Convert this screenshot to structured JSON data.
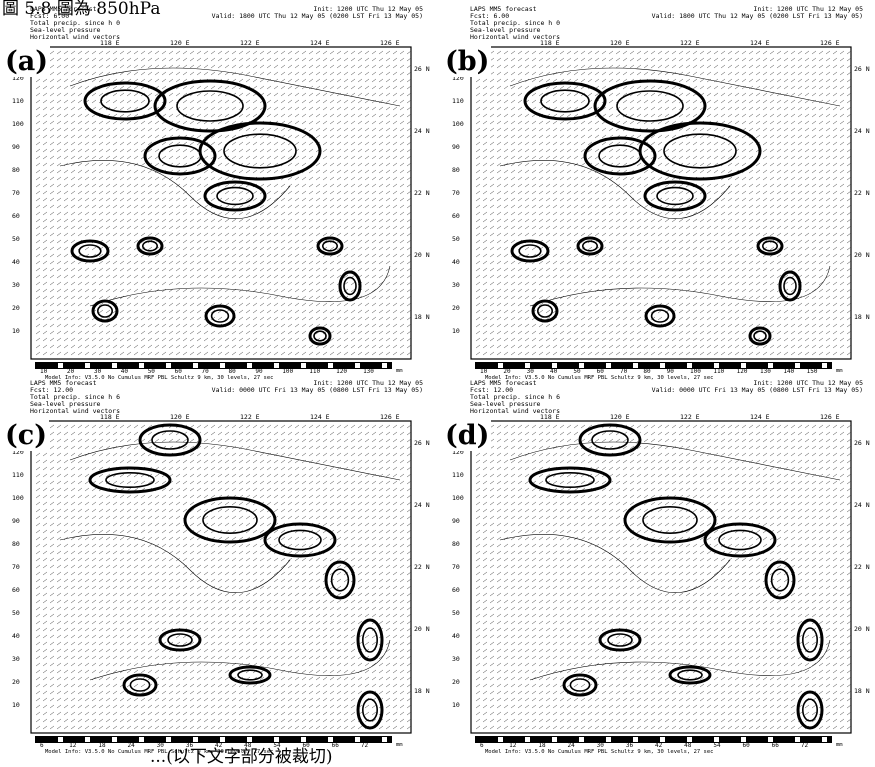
{
  "figure": {
    "caption_top": "圖 5.8 圖為 850hPa",
    "caption_bottom": "...(以下文字部分被裁切)"
  },
  "panels": [
    {
      "label": "(a)",
      "model": "LAPS MM5 forecast",
      "fcst": "Fcst: 6.00",
      "init": "Init: 1200 UTC Thu 12 May 05",
      "valid": "Valid: 1800 UTC Thu 12 May 05 (0200 LST Fri 13 May 05)",
      "line3": "Total precip. since h 0",
      "line4": "Sea-level pressure",
      "line5": "Horizontal wind vectors",
      "top_ticks": [
        "118 E",
        "120 E",
        "122 E",
        "124 E",
        "126 E"
      ],
      "right_ticks": [
        "26 N",
        "24 N",
        "22 N",
        "20 N",
        "18 N"
      ],
      "left_ticks": [
        "130",
        "120",
        "110",
        "100",
        "90",
        "80",
        "70",
        "60",
        "50",
        "40",
        "30",
        "20",
        "10"
      ],
      "scale_ticks": [
        "10",
        "20",
        "30",
        "40",
        "50",
        "60",
        "70",
        "80",
        "90",
        "100",
        "110",
        "120",
        "130"
      ],
      "scale_unit": "mm",
      "model_info": "Model Info: V3.5.0 No Cumulus MRF PBL Schultz 9 km, 30 levels, 27 sec"
    },
    {
      "label": "(b)",
      "model": "LAPS MM5 forecast",
      "fcst": "Fcst: 6.00",
      "init": "Init: 1200 UTC Thu 12 May 05",
      "valid": "Valid: 1800 UTC Thu 12 May 05 (0200 LST Fri 13 May 05)",
      "line3": "Total precip. since h 0",
      "line4": "Sea-level pressure",
      "line5": "Horizontal wind vectors",
      "top_ticks": [
        "118 E",
        "120 E",
        "122 E",
        "124 E",
        "126 E"
      ],
      "right_ticks": [
        "26 N",
        "24 N",
        "22 N",
        "20 N",
        "18 N"
      ],
      "left_ticks": [
        "130",
        "120",
        "110",
        "100",
        "90",
        "80",
        "70",
        "60",
        "50",
        "40",
        "30",
        "20",
        "10"
      ],
      "scale_ticks": [
        "10",
        "20",
        "30",
        "40",
        "50",
        "60",
        "70",
        "80",
        "90",
        "100",
        "110",
        "120",
        "130",
        "140",
        "150"
      ],
      "scale_unit": "mm",
      "model_info": "Model Info: V3.5.0 No Cumulus MRF PBL Schultz 9 km, 30 levels, 27 sec"
    },
    {
      "label": "(c)",
      "model": "LAPS MM5 forecast",
      "fcst": "Fcst: 12.00",
      "init": "Init: 1200 UTC Thu 12 May 05",
      "valid": "Valid: 0000 UTC Fri 13 May 05 (0800 LST Fri 13 May 05)",
      "line3": "Total precip. since h 6",
      "line4": "Sea-level pressure",
      "line5": "Horizontal wind vectors",
      "top_ticks": [
        "118 E",
        "120 E",
        "122 E",
        "124 E",
        "126 E"
      ],
      "right_ticks": [
        "26 N",
        "24 N",
        "22 N",
        "20 N",
        "18 N"
      ],
      "left_ticks": [
        "130",
        "120",
        "110",
        "100",
        "90",
        "80",
        "70",
        "60",
        "50",
        "40",
        "30",
        "20",
        "10"
      ],
      "scale_ticks": [
        "6",
        "12",
        "18",
        "24",
        "30",
        "36",
        "42",
        "48",
        "54",
        "60",
        "66",
        "72"
      ],
      "scale_unit": "mm",
      "model_info": "Model Info: V3.5.0 No Cumulus MRF PBL Schultz 9 km, 30 levels, 27 sec"
    },
    {
      "label": "(d)",
      "model": "LAPS MM5 forecast",
      "fcst": "Fcst: 12.00",
      "init": "Init: 1200 UTC Thu 12 May 05",
      "valid": "Valid: 0000 UTC Fri 13 May 05 (0800 LST Fri 13 May 05)",
      "line3": "Total precip. since h 6",
      "line4": "Sea-level pressure",
      "line5": "Horizontal wind vectors",
      "top_ticks": [
        "118 E",
        "120 E",
        "122 E",
        "124 E",
        "126 E"
      ],
      "right_ticks": [
        "26 N",
        "24 N",
        "22 N",
        "20 N",
        "18 N"
      ],
      "left_ticks": [
        "130",
        "120",
        "110",
        "100",
        "90",
        "80",
        "70",
        "60",
        "50",
        "40",
        "30",
        "20",
        "10"
      ],
      "scale_ticks": [
        "6",
        "12",
        "18",
        "24",
        "30",
        "36",
        "42",
        "48",
        "54",
        "60",
        "66",
        "72"
      ],
      "scale_unit": "mm",
      "model_info": "Model Info: V3.5.0 No Cumulus MRF PBL Schultz 9 km, 30 levels, 27 sec"
    }
  ]
}
